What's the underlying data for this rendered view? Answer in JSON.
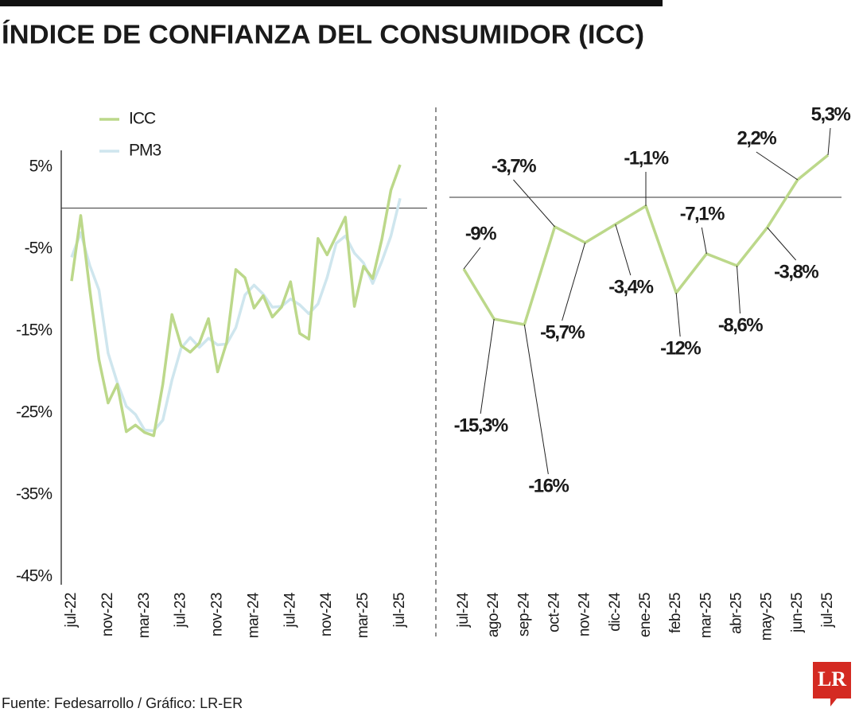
{
  "title": "ÍNDICE DE CONFIANZA DEL CONSUMIDOR (ICC)",
  "source": "Fuente: Fedesarrollo / Gráfico: LR-ER",
  "logo": "LR",
  "chart_data": [
    {
      "type": "line",
      "categories": [
        "jul-22",
        null,
        null,
        null,
        "nov-22",
        null,
        null,
        null,
        "mar-23",
        null,
        null,
        null,
        "jul-23",
        null,
        null,
        null,
        "nov-23",
        null,
        null,
        null,
        "mar-24",
        null,
        null,
        null,
        "jul-24",
        null,
        null,
        null,
        "nov-24",
        null,
        null,
        null,
        "mar-25",
        null,
        null,
        null,
        "jul-25"
      ],
      "series": [
        {
          "name": "ICC",
          "color": "#bcd88a",
          "values": [
            -8.9,
            -0.9,
            -10,
            -18.5,
            -23.8,
            -21.5,
            -27.3,
            -26.5,
            -27.4,
            -27.8,
            -21.5,
            -13,
            -16.8,
            -17.6,
            -16.5,
            -13.5,
            -20,
            -16.4,
            -7.5,
            -8.5,
            -12.2,
            -10.7,
            -13.3,
            -12.1,
            -9,
            -15.3,
            -16,
            -3.7,
            -5.7,
            -3.4,
            -1.1,
            -12,
            -7.1,
            -8.6,
            -3.8,
            2.2,
            5.3
          ]
        },
        {
          "name": "PM3",
          "color": "#cfe6ee",
          "values": [
            -6,
            -3,
            -7,
            -10,
            -17.7,
            -21.3,
            -24.2,
            -25.2,
            -27.1,
            -27.2,
            -25.9,
            -21,
            -17.1,
            -15.8,
            -17,
            -15.9,
            -16.7,
            -16.6,
            -14.6,
            -10.6,
            -9.4,
            -10.5,
            -12.1,
            -12,
            -11.1,
            -11.8,
            -12.9,
            -11.7,
            -8.5,
            -4.3,
            -3.4,
            -5.5,
            -6.7,
            -9.2,
            -6.5,
            -3.4,
            1.2
          ]
        }
      ],
      "ylim": [
        -46,
        9
      ],
      "yticks": [
        {
          "value": 5,
          "label": "5%"
        },
        {
          "value": -5,
          "label": "-5%"
        },
        {
          "value": -15,
          "label": "-15%"
        },
        {
          "value": -25,
          "label": "-25%"
        },
        {
          "value": -35,
          "label": "-35%"
        },
        {
          "value": -45,
          "label": "-45%"
        }
      ]
    },
    {
      "type": "line",
      "categories": [
        "jul-24",
        "ago-24",
        "sep-24",
        "oct-24",
        "nov-24",
        "dic-24",
        "ene-25",
        "feb-25",
        "mar-25",
        "abr-25",
        "may-25",
        "jun-25",
        "jul-25"
      ],
      "values": [
        -9,
        -15.3,
        -16,
        -3.7,
        -5.7,
        -3.4,
        -1.1,
        -12,
        -7.1,
        -8.6,
        -3.8,
        2.2,
        5.3
      ],
      "value_labels": [
        "-9%",
        "-15,3%",
        "-16%",
        "-3,7%",
        "-5,7%",
        "-3,4%",
        "-1,1%",
        "-12%",
        "-7,1%",
        "-8,6%",
        "-3,8%",
        "2,2%",
        "5,3%"
      ],
      "color": "#bcd88a",
      "ylim": [
        -20,
        8
      ]
    }
  ]
}
